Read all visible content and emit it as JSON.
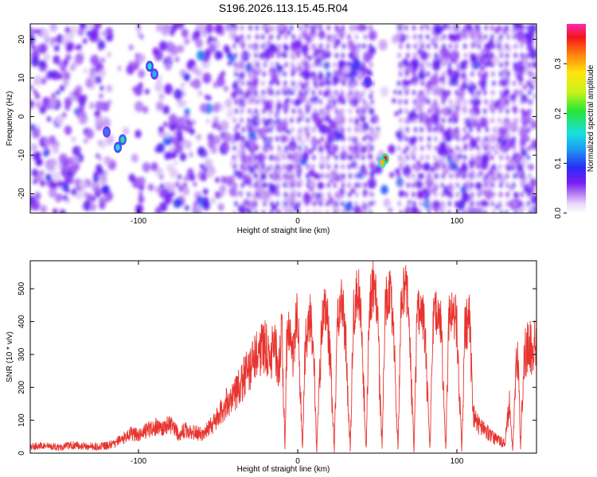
{
  "title": "S196.2026.113.15.45.R04",
  "chart_data": [
    {
      "type": "heatmap",
      "xlabel": "Height of straight line (km)",
      "ylabel": "Frequency (Hz)",
      "xlim": [
        -168,
        150
      ],
      "ylim": [
        -25,
        24
      ],
      "xticks": [
        "-100",
        "0",
        "100"
      ],
      "yticks": [
        "20",
        "10",
        "0",
        "-10",
        "-20"
      ],
      "colorbar": {
        "label": "Normalized spectral amplitude",
        "range": [
          0.0,
          0.38
        ],
        "ticks": [
          "0.0",
          "0.1",
          "0.2",
          "0.3"
        ]
      },
      "features": [
        {
          "x": 55,
          "y": -11,
          "amp": 0.36
        },
        {
          "x": 53,
          "y": -12,
          "amp": 0.3
        },
        {
          "x": -110,
          "y": -6,
          "amp": 0.18
        },
        {
          "x": -113,
          "y": -8,
          "amp": 0.16
        },
        {
          "x": -93,
          "y": 13,
          "amp": 0.16
        },
        {
          "x": -90,
          "y": 11,
          "amp": 0.14
        },
        {
          "x": -120,
          "y": -4,
          "amp": 0.12
        },
        {
          "x": 44,
          "y": 9,
          "amp": 0.1
        }
      ]
    },
    {
      "type": "line",
      "xlabel": "Height of straight line (km)",
      "ylabel": "SNR (10 * v/v)",
      "xlim": [
        -168,
        150
      ],
      "ylim": [
        0,
        585
      ],
      "xticks": [
        "-100",
        "0",
        "100"
      ],
      "yticks": [
        "0",
        "100",
        "200",
        "300",
        "400",
        "500"
      ],
      "color": "#e8342f",
      "series": [
        {
          "x": [
            -168,
            -160,
            -150,
            -140,
            -130,
            -120,
            -115,
            -110,
            -105,
            -100,
            -95,
            -90,
            -85,
            -80,
            -75,
            -70,
            -65,
            -60,
            -55,
            -50,
            -45,
            -40,
            -35,
            -30,
            -25,
            -20,
            -18,
            -15,
            -12,
            -10,
            -8,
            -7,
            -5,
            -3,
            0,
            3,
            5,
            8,
            10,
            12,
            15,
            18,
            20,
            23,
            25,
            28,
            30,
            33,
            35,
            38,
            40,
            43,
            45,
            48,
            50,
            53,
            55,
            58,
            60,
            63,
            65,
            68,
            70,
            73,
            75,
            78,
            80,
            83,
            85,
            88,
            90,
            93,
            95,
            98,
            100,
            103,
            105,
            108,
            110,
            113,
            115,
            120,
            125,
            130,
            133,
            135,
            138,
            140,
            142,
            145,
            148,
            150
          ],
          "y": [
            20,
            22,
            18,
            25,
            20,
            22,
            28,
            45,
            60,
            55,
            70,
            80,
            75,
            90,
            60,
            70,
            65,
            55,
            80,
            110,
            150,
            180,
            220,
            260,
            300,
            330,
            260,
            350,
            250,
            380,
            10,
            310,
            380,
            300,
            430,
            10,
            350,
            420,
            300,
            10,
            380,
            450,
            320,
            10,
            400,
            480,
            350,
            10,
            420,
            510,
            380,
            10,
            450,
            520,
            410,
            10,
            460,
            500,
            380,
            10,
            450,
            520,
            400,
            10,
            420,
            460,
            350,
            10,
            410,
            430,
            380,
            10,
            400,
            420,
            390,
            10,
            380,
            410,
            120,
            90,
            80,
            60,
            40,
            30,
            150,
            10,
            330,
            20,
            280,
            340,
            300,
            360
          ]
        }
      ]
    }
  ]
}
